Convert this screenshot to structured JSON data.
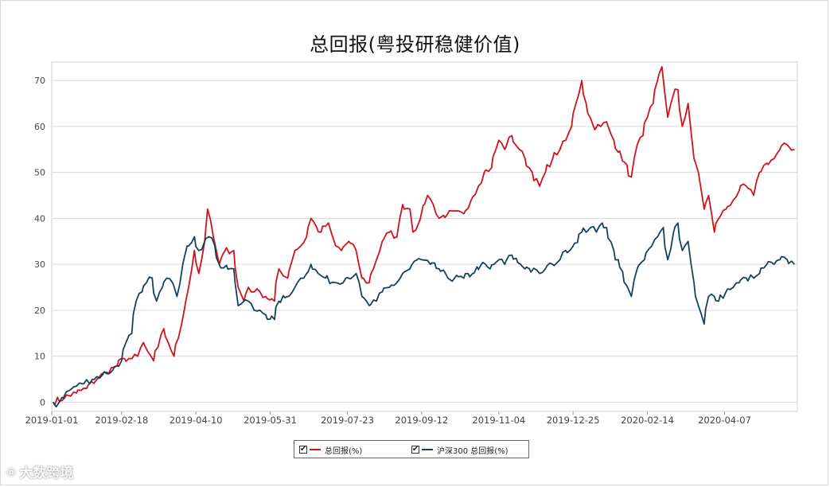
{
  "chart_data": {
    "type": "line",
    "title": "总回报(粤投研稳健价值)",
    "x_tick_labels": [
      "2019-01-01",
      "2019-02-18",
      "2019-04-10",
      "2019-05-31",
      "2019-07-23",
      "2019-09-12",
      "2019-11-04",
      "2019-12-25",
      "2020-02-14",
      "2020-04-07"
    ],
    "y_ticks": [
      0,
      10,
      20,
      30,
      40,
      50,
      60,
      70
    ],
    "ylim": [
      -2,
      74
    ],
    "grid": true,
    "legend_position": "bottom-center",
    "series": [
      {
        "name": "总回报(%)",
        "color": "#d0121b",
        "points": [
          [
            "2019-01-02",
            0
          ],
          [
            "2019-01-10",
            1
          ],
          [
            "2019-01-18",
            2
          ],
          [
            "2019-01-25",
            3
          ],
          [
            "2019-02-01",
            5
          ],
          [
            "2019-02-08",
            6.5
          ],
          [
            "2019-02-15",
            8
          ],
          [
            "2019-02-20",
            9.5
          ],
          [
            "2019-02-25",
            9.5
          ],
          [
            "2019-03-01",
            10
          ],
          [
            "2019-03-05",
            13
          ],
          [
            "2019-03-08",
            11
          ],
          [
            "2019-03-12",
            9
          ],
          [
            "2019-03-15",
            12
          ],
          [
            "2019-03-19",
            16
          ],
          [
            "2019-03-22",
            13
          ],
          [
            "2019-03-26",
            10
          ],
          [
            "2019-03-29",
            14
          ],
          [
            "2019-04-02",
            20
          ],
          [
            "2019-04-05",
            25
          ],
          [
            "2019-04-09",
            33
          ],
          [
            "2019-04-12",
            28
          ],
          [
            "2019-04-16",
            35
          ],
          [
            "2019-04-18",
            42
          ],
          [
            "2019-04-22",
            36
          ],
          [
            "2019-04-26",
            30
          ],
          [
            "2019-04-30",
            33
          ],
          [
            "2019-05-06",
            33
          ],
          [
            "2019-05-09",
            25
          ],
          [
            "2019-05-13",
            22
          ],
          [
            "2019-05-16",
            25
          ],
          [
            "2019-05-20",
            24
          ],
          [
            "2019-05-24",
            24
          ],
          [
            "2019-05-28",
            23
          ],
          [
            "2019-06-03",
            22
          ],
          [
            "2019-06-06",
            29
          ],
          [
            "2019-06-12",
            27
          ],
          [
            "2019-06-17",
            33
          ],
          [
            "2019-06-21",
            34
          ],
          [
            "2019-06-25",
            36
          ],
          [
            "2019-06-28",
            40
          ],
          [
            "2019-07-02",
            38
          ],
          [
            "2019-07-05",
            37
          ],
          [
            "2019-07-10",
            39
          ],
          [
            "2019-07-15",
            34
          ],
          [
            "2019-07-19",
            33
          ],
          [
            "2019-07-24",
            35
          ],
          [
            "2019-07-29",
            33
          ],
          [
            "2019-08-02",
            27
          ],
          [
            "2019-08-07",
            26
          ],
          [
            "2019-08-12",
            31
          ],
          [
            "2019-08-16",
            35
          ],
          [
            "2019-08-21",
            37
          ],
          [
            "2019-08-26",
            36
          ],
          [
            "2019-08-30",
            43
          ],
          [
            "2019-09-04",
            42
          ],
          [
            "2019-09-06",
            37
          ],
          [
            "2019-09-10",
            39
          ],
          [
            "2019-09-16",
            45
          ],
          [
            "2019-09-20",
            43
          ],
          [
            "2019-09-24",
            40
          ],
          [
            "2019-09-30",
            41
          ],
          [
            "2019-10-11",
            41
          ],
          [
            "2019-10-16",
            44
          ],
          [
            "2019-10-21",
            47
          ],
          [
            "2019-10-25",
            50
          ],
          [
            "2019-10-30",
            51
          ],
          [
            "2019-11-04",
            57
          ],
          [
            "2019-11-08",
            55
          ],
          [
            "2019-11-13",
            58
          ],
          [
            "2019-11-18",
            55
          ],
          [
            "2019-11-22",
            53
          ],
          [
            "2019-11-27",
            50
          ],
          [
            "2019-12-02",
            47
          ],
          [
            "2019-12-06",
            50
          ],
          [
            "2019-12-11",
            53
          ],
          [
            "2019-12-16",
            55
          ],
          [
            "2019-12-20",
            57
          ],
          [
            "2019-12-24",
            60
          ],
          [
            "2019-12-27",
            65
          ],
          [
            "2019-12-31",
            70
          ],
          [
            "2020-01-03",
            65
          ],
          [
            "2020-01-08",
            60
          ],
          [
            "2020-01-13",
            60
          ],
          [
            "2020-01-17",
            61
          ],
          [
            "2020-01-22",
            57
          ],
          [
            "2020-02-03",
            49
          ],
          [
            "2020-02-07",
            56
          ],
          [
            "2020-02-11",
            58
          ],
          [
            "2020-02-14",
            62
          ],
          [
            "2020-02-18",
            65
          ],
          [
            "2020-02-21",
            70
          ],
          [
            "2020-02-24",
            73
          ],
          [
            "2020-02-28",
            62
          ],
          [
            "2020-03-03",
            67
          ],
          [
            "2020-03-06",
            68
          ],
          [
            "2020-03-09",
            60
          ],
          [
            "2020-03-13",
            65
          ],
          [
            "2020-03-17",
            53
          ],
          [
            "2020-03-20",
            50
          ],
          [
            "2020-03-24",
            42
          ],
          [
            "2020-03-27",
            45
          ],
          [
            "2020-03-31",
            37
          ],
          [
            "2020-04-03",
            40
          ],
          [
            "2020-04-08",
            42
          ],
          [
            "2020-04-13",
            44
          ],
          [
            "2020-04-17",
            46
          ],
          [
            "2020-04-22",
            47
          ],
          [
            "2020-04-27",
            45
          ],
          [
            "2020-05-01",
            50
          ],
          [
            "2020-05-06",
            52
          ],
          [
            "2020-05-11",
            53
          ],
          [
            "2020-05-15",
            55
          ],
          [
            "2020-05-20",
            56
          ],
          [
            "2020-05-25",
            55
          ]
        ]
      },
      {
        "name": "沪深300 总回报(%)",
        "color": "#14425c",
        "points": [
          [
            "2019-01-02",
            0
          ],
          [
            "2019-01-04",
            -1
          ],
          [
            "2019-01-08",
            1
          ],
          [
            "2019-01-15",
            3
          ],
          [
            "2019-01-22",
            4
          ],
          [
            "2019-01-29",
            5
          ],
          [
            "2019-02-05",
            6
          ],
          [
            "2019-02-12",
            7
          ],
          [
            "2019-02-18",
            9
          ],
          [
            "2019-02-21",
            13
          ],
          [
            "2019-02-25",
            15
          ],
          [
            "2019-02-28",
            22
          ],
          [
            "2019-03-04",
            24
          ],
          [
            "2019-03-07",
            26
          ],
          [
            "2019-03-11",
            27
          ],
          [
            "2019-03-14",
            22
          ],
          [
            "2019-03-18",
            25
          ],
          [
            "2019-03-21",
            27
          ],
          [
            "2019-03-25",
            26
          ],
          [
            "2019-03-28",
            23
          ],
          [
            "2019-04-01",
            30
          ],
          [
            "2019-04-04",
            34
          ],
          [
            "2019-04-09",
            36
          ],
          [
            "2019-04-12",
            33
          ],
          [
            "2019-04-16",
            35
          ],
          [
            "2019-04-19",
            36
          ],
          [
            "2019-04-23",
            34
          ],
          [
            "2019-04-26",
            30
          ],
          [
            "2019-05-06",
            29
          ],
          [
            "2019-05-09",
            21
          ],
          [
            "2019-05-13",
            22
          ],
          [
            "2019-05-16",
            22
          ],
          [
            "2019-05-20",
            20
          ],
          [
            "2019-05-24",
            20
          ],
          [
            "2019-05-28",
            19
          ],
          [
            "2019-06-03",
            18
          ],
          [
            "2019-06-06",
            22
          ],
          [
            "2019-06-12",
            23
          ],
          [
            "2019-06-17",
            25
          ],
          [
            "2019-06-21",
            27
          ],
          [
            "2019-06-25",
            28
          ],
          [
            "2019-06-28",
            30
          ],
          [
            "2019-07-03",
            28
          ],
          [
            "2019-07-08",
            27
          ],
          [
            "2019-07-15",
            26
          ],
          [
            "2019-07-22",
            27
          ],
          [
            "2019-07-29",
            28
          ],
          [
            "2019-08-02",
            23
          ],
          [
            "2019-08-07",
            21
          ],
          [
            "2019-08-12",
            22
          ],
          [
            "2019-08-16",
            24
          ],
          [
            "2019-08-21",
            25
          ],
          [
            "2019-08-26",
            26
          ],
          [
            "2019-08-30",
            28
          ],
          [
            "2019-09-04",
            29
          ],
          [
            "2019-09-09",
            31
          ],
          [
            "2019-09-12",
            31
          ],
          [
            "2019-09-18",
            30
          ],
          [
            "2019-09-24",
            29
          ],
          [
            "2019-09-30",
            27
          ],
          [
            "2019-10-11",
            27
          ],
          [
            "2019-10-17",
            28
          ],
          [
            "2019-10-23",
            30
          ],
          [
            "2019-10-29",
            29
          ],
          [
            "2019-11-04",
            31
          ],
          [
            "2019-11-08",
            30
          ],
          [
            "2019-11-13",
            32
          ],
          [
            "2019-11-19",
            30
          ],
          [
            "2019-11-25",
            29
          ],
          [
            "2019-12-02",
            28
          ],
          [
            "2019-12-06",
            29
          ],
          [
            "2019-12-11",
            30
          ],
          [
            "2019-12-16",
            31
          ],
          [
            "2019-12-20",
            33
          ],
          [
            "2019-12-25",
            34
          ],
          [
            "2019-12-31",
            37
          ],
          [
            "2020-01-06",
            38
          ],
          [
            "2020-01-10",
            37
          ],
          [
            "2020-01-14",
            39
          ],
          [
            "2020-01-17",
            38
          ],
          [
            "2020-01-22",
            33
          ],
          [
            "2020-02-03",
            23
          ],
          [
            "2020-02-07",
            29
          ],
          [
            "2020-02-12",
            31
          ],
          [
            "2020-02-17",
            34
          ],
          [
            "2020-02-21",
            36
          ],
          [
            "2020-02-25",
            38
          ],
          [
            "2020-02-28",
            31
          ],
          [
            "2020-03-03",
            37
          ],
          [
            "2020-03-06",
            39
          ],
          [
            "2020-03-09",
            33
          ],
          [
            "2020-03-13",
            35
          ],
          [
            "2020-03-17",
            26
          ],
          [
            "2020-03-20",
            21
          ],
          [
            "2020-03-24",
            17
          ],
          [
            "2020-03-27",
            23
          ],
          [
            "2020-03-31",
            23
          ],
          [
            "2020-04-03",
            22
          ],
          [
            "2020-04-08",
            24
          ],
          [
            "2020-04-13",
            25
          ],
          [
            "2020-04-17",
            26
          ],
          [
            "2020-04-22",
            27
          ],
          [
            "2020-04-27",
            27
          ],
          [
            "2020-05-01",
            28
          ],
          [
            "2020-05-06",
            30
          ],
          [
            "2020-05-11",
            30
          ],
          [
            "2020-05-15",
            31
          ],
          [
            "2020-05-20",
            31
          ],
          [
            "2020-05-25",
            30
          ]
        ]
      }
    ]
  },
  "legend": [
    {
      "label": "总回报(%)",
      "check": "✔",
      "color": "#d0121b"
    },
    {
      "label": "沪深300 总回报(%)",
      "check": "✔",
      "color": "#14425c"
    }
  ],
  "watermark": {
    "text": "大数跨境",
    "logo": "◎"
  }
}
